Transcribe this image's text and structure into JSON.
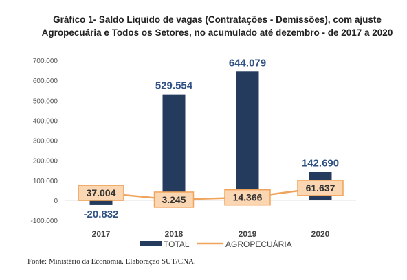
{
  "title_line1": "Gráfico 1- Saldo Líquido de vagas (Contratações - Demissões), com ajuste",
  "title_line2": "Agropecuária e Todos os Setores, no acumulado até dezembro - de 2017 a 2020",
  "source": "Fonte: Ministério da Economia. Elaboração SUT/CNA.",
  "colors": {
    "total": "#243b5e",
    "agro": "#f0a35a",
    "agro_label_bg": "#fbd6b2",
    "agro_label_border": "#f0a35a",
    "total_label": "#2f5183"
  },
  "chart_data": {
    "type": "bar",
    "categories": [
      "2017",
      "2018",
      "2019",
      "2020"
    ],
    "series": [
      {
        "name": "TOTAL",
        "type": "bar",
        "values": [
          -20832,
          529554,
          644079,
          142690
        ],
        "labels": [
          "-20.832",
          "529.554",
          "644.079",
          "142.690"
        ]
      },
      {
        "name": "AGROPECUÁRIA",
        "type": "line",
        "values": [
          37004,
          3245,
          14366,
          61637
        ],
        "labels": [
          "37.004",
          "3.245",
          "14.366",
          "61.637"
        ]
      }
    ],
    "yticks": [
      -100000,
      0,
      100000,
      200000,
      300000,
      400000,
      500000,
      600000,
      700000
    ],
    "ytick_labels": [
      "-100.000",
      "0",
      "100.000",
      "200.000",
      "300.000",
      "400.000",
      "500.000",
      "600.000",
      "700.000"
    ],
    "ylim": [
      -100000,
      700000
    ],
    "legend": [
      "TOTAL",
      "AGROPECUÁRIA"
    ],
    "legend_position": "bottom",
    "grid": false
  }
}
